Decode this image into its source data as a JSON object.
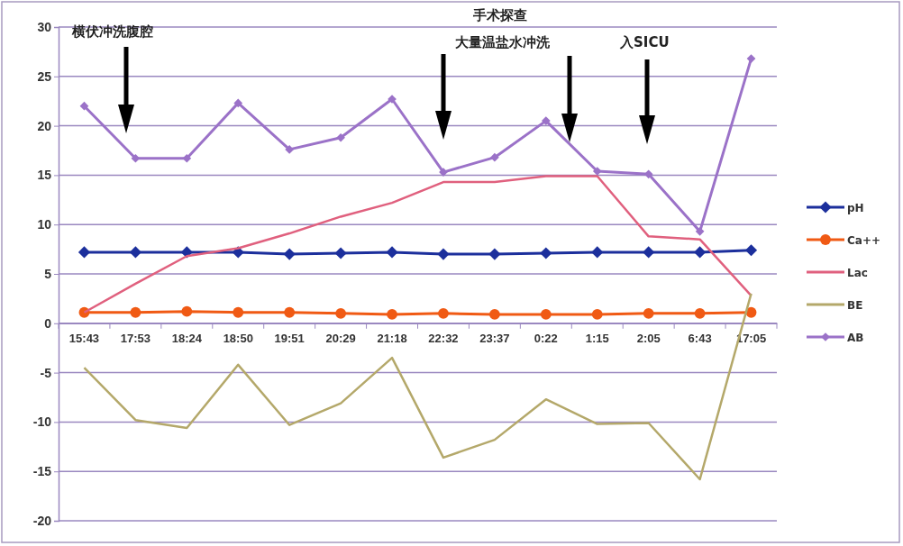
{
  "chart_data": {
    "type": "line",
    "categories": [
      "15:43",
      "17:53",
      "18:24",
      "18:50",
      "19:51",
      "20:29",
      "21:18",
      "22:32",
      "23:37",
      "0:22",
      "1:15",
      "2:05",
      "6:43",
      "17:05"
    ],
    "series": [
      {
        "name": "pH",
        "color": "#1c2f9c",
        "marker": "diamond",
        "values": [
          7.2,
          7.2,
          7.2,
          7.2,
          7.0,
          7.1,
          7.2,
          7.0,
          7.0,
          7.1,
          7.2,
          7.2,
          7.2,
          7.4
        ]
      },
      {
        "name": "Ca++",
        "color": "#f05a14",
        "marker": "circle",
        "values": [
          1.1,
          1.1,
          1.2,
          1.1,
          1.1,
          1.0,
          0.9,
          1.0,
          0.9,
          0.9,
          0.9,
          1.0,
          1.0,
          1.1
        ]
      },
      {
        "name": "Lac",
        "color": "#e0607e",
        "marker": "none",
        "values": [
          1.1,
          4.0,
          6.8,
          7.6,
          9.1,
          10.8,
          12.2,
          14.3,
          14.3,
          14.9,
          14.9,
          8.8,
          8.5,
          2.8
        ]
      },
      {
        "name": "BE",
        "color": "#b4a86a",
        "marker": "none",
        "values": [
          -4.5,
          -9.8,
          -10.6,
          -4.2,
          -10.3,
          -8.1,
          -3.5,
          -13.6,
          -11.8,
          -7.7,
          -10.2,
          -10.1,
          -15.8,
          3.0
        ]
      },
      {
        "name": "AB",
        "color": "#9b72c8",
        "marker": "diamond",
        "values": [
          22.0,
          16.7,
          16.7,
          22.3,
          17.6,
          18.8,
          22.7,
          15.3,
          16.8,
          20.5,
          15.4,
          15.1,
          9.3,
          26.8
        ]
      }
    ],
    "ylim": [
      -20,
      30
    ],
    "yticks": [
      -20,
      -15,
      -10,
      -5,
      0,
      5,
      10,
      15,
      20,
      25,
      30
    ],
    "grid": "y",
    "legend": "right",
    "annotations": [
      "横伏冲洗腹腔",
      "手术探查",
      "大量温盐水冲洗",
      "入SICU"
    ]
  }
}
